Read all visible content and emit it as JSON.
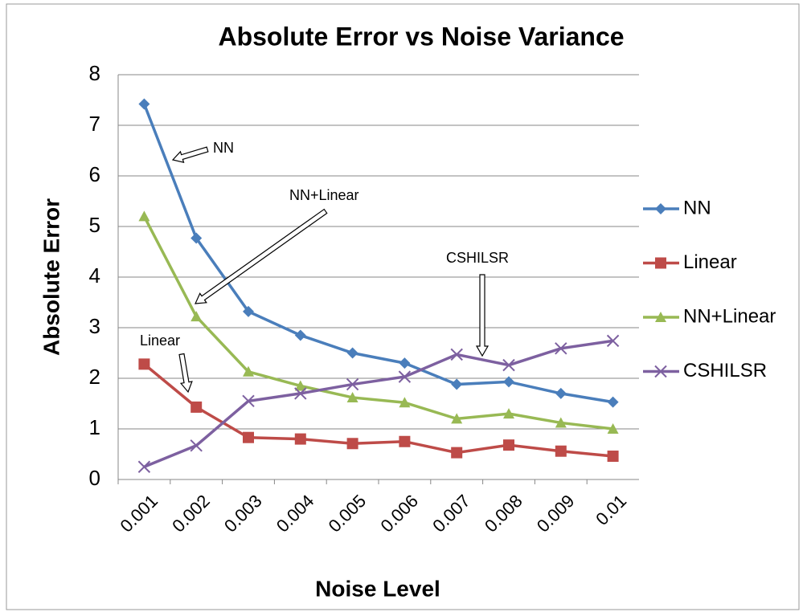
{
  "chart_data": {
    "type": "line",
    "title": "Absolute Error vs Noise Variance",
    "x_label": "Noise Level",
    "y_label": "Absolute Error",
    "categories": [
      "0.001",
      "0.002",
      "0.003",
      "0.004",
      "0.005",
      "0.006",
      "0.007",
      "0.008",
      "0.009",
      "0.01"
    ],
    "series": [
      {
        "name": "NN",
        "color": "#4a7ebb",
        "marker": "diamond",
        "values": [
          7.42,
          4.77,
          3.32,
          2.85,
          2.5,
          2.3,
          1.88,
          1.93,
          1.7,
          1.53
        ]
      },
      {
        "name": "Linear",
        "color": "#be4b48",
        "marker": "square",
        "values": [
          2.28,
          1.43,
          0.83,
          0.8,
          0.71,
          0.75,
          0.53,
          0.68,
          0.56,
          0.46
        ]
      },
      {
        "name": "NN+Linear",
        "color": "#98b954",
        "marker": "triangle",
        "values": [
          5.2,
          3.22,
          2.13,
          1.85,
          1.62,
          1.52,
          1.2,
          1.3,
          1.12,
          1.0
        ]
      },
      {
        "name": "CSHILSR",
        "color": "#7d60a0",
        "marker": "x",
        "values": [
          0.25,
          0.67,
          1.55,
          1.7,
          1.88,
          2.03,
          2.47,
          2.26,
          2.59,
          2.74
        ]
      }
    ],
    "ylim": [
      0,
      8
    ],
    "yticks": [
      0,
      1,
      2,
      3,
      4,
      5,
      6,
      7,
      8
    ],
    "grid": true,
    "legend": "right",
    "annotations": [
      {
        "text": "NN"
      },
      {
        "text": "NN+Linear"
      },
      {
        "text": "Linear"
      },
      {
        "text": "CSHILSR"
      }
    ]
  }
}
